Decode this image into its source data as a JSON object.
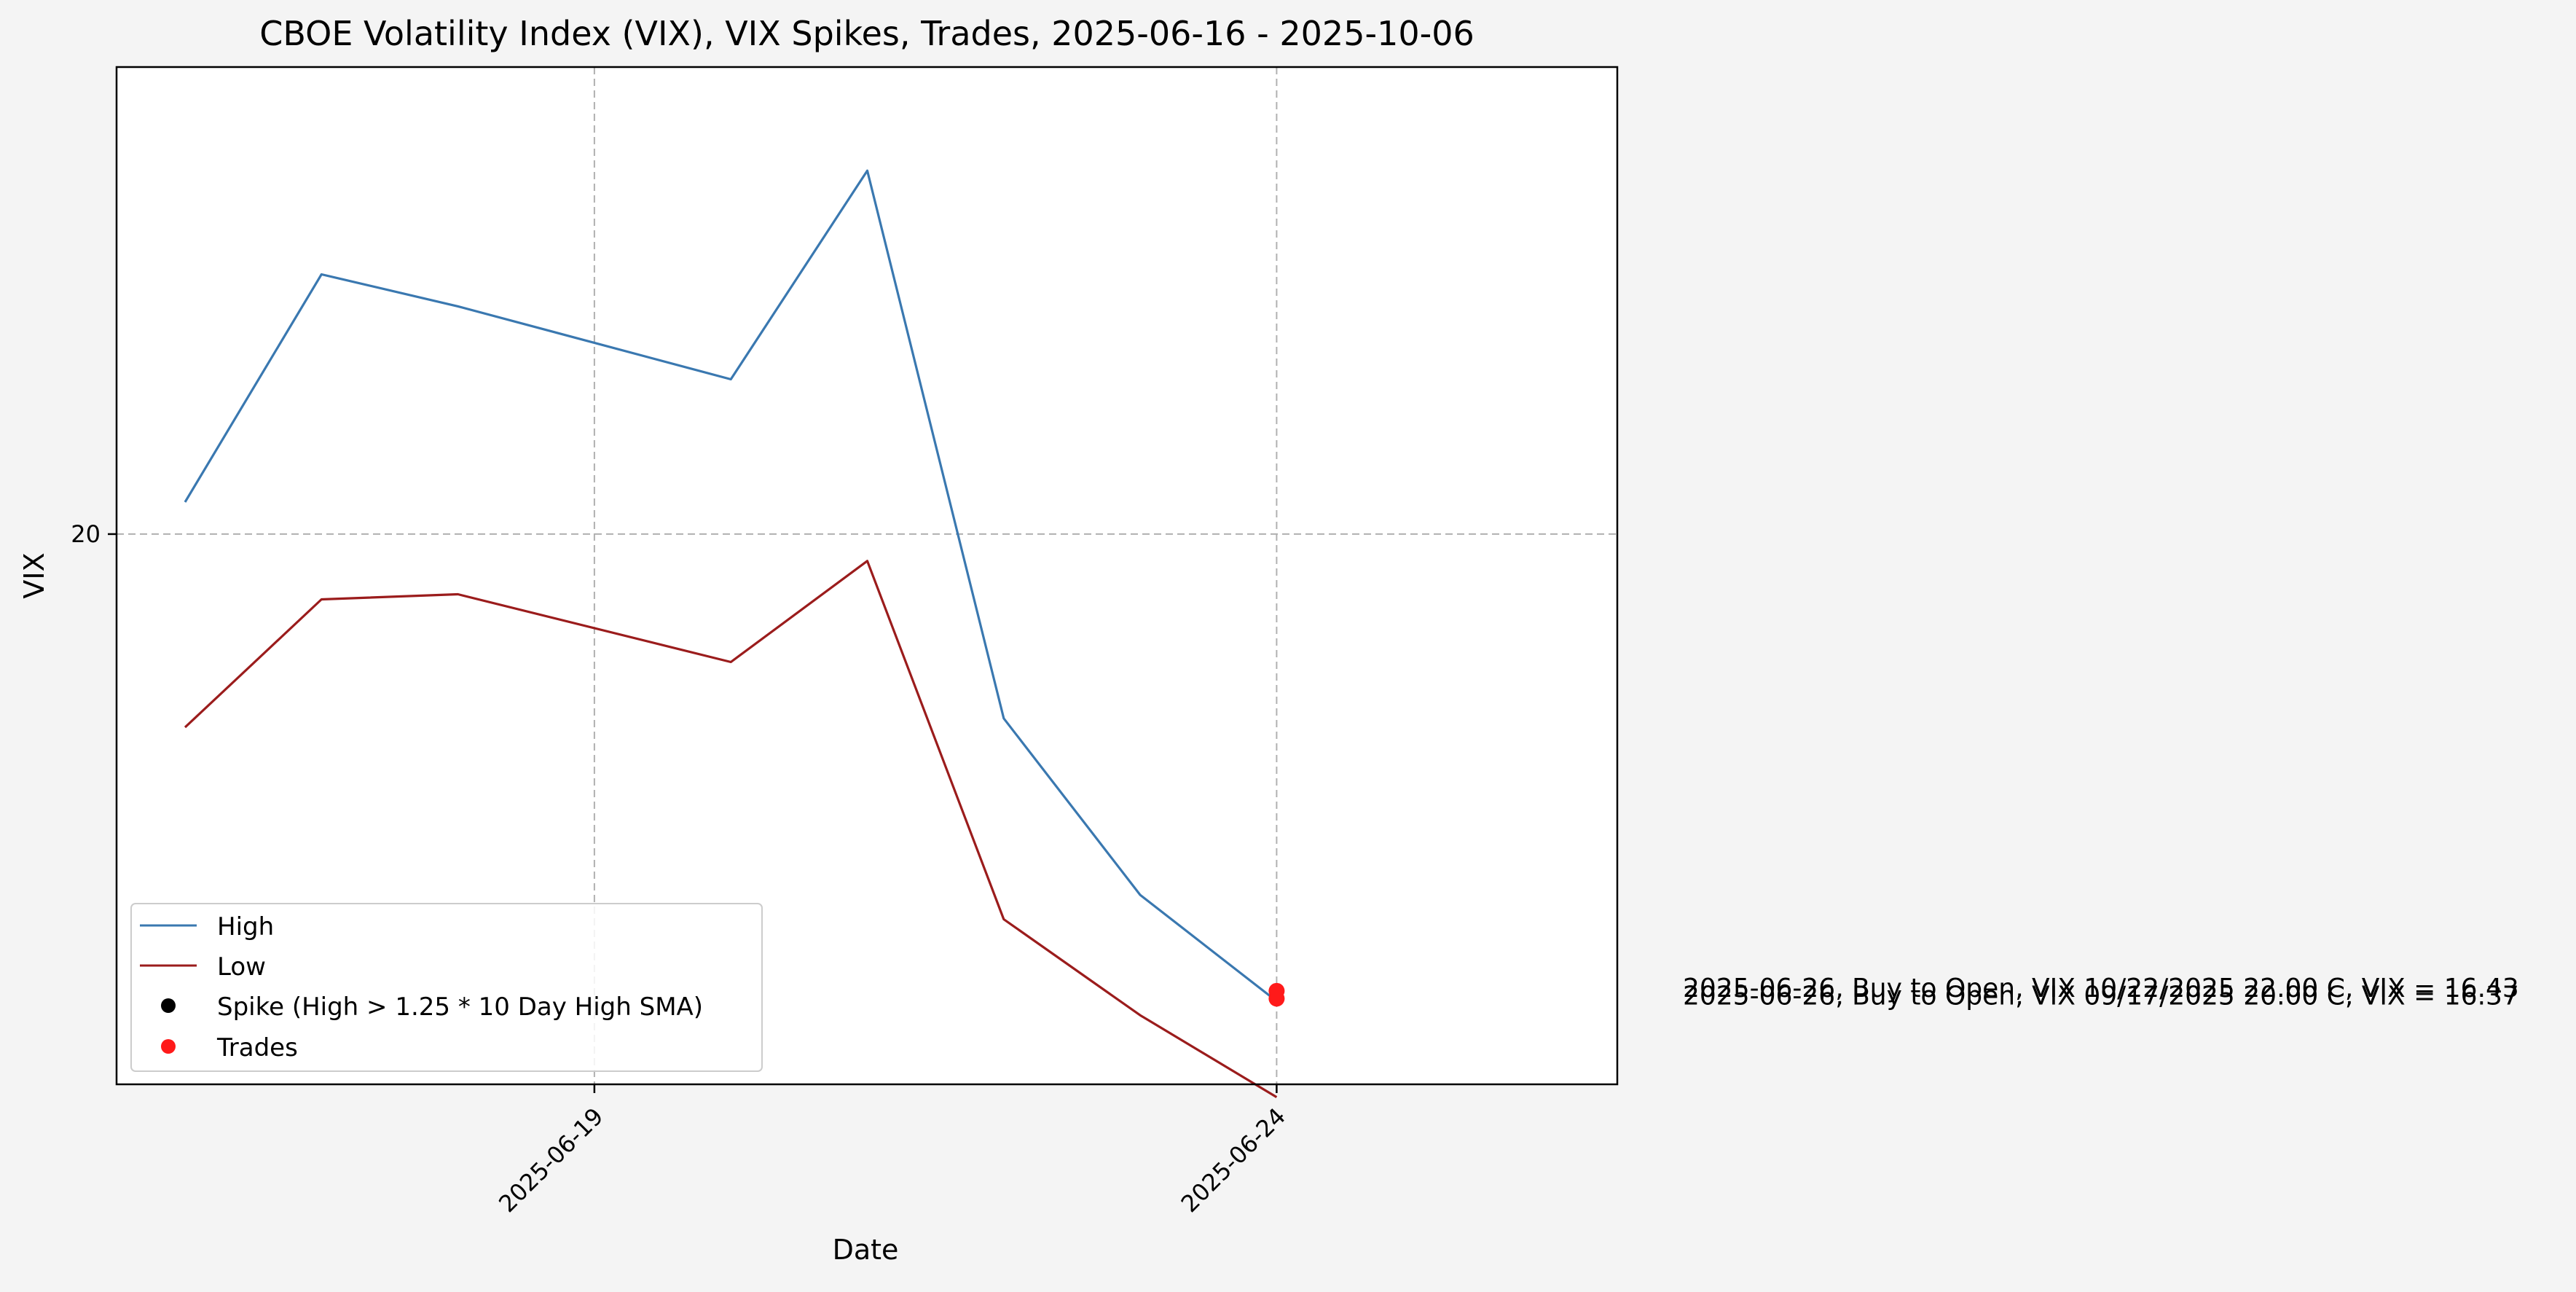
{
  "chart_data": {
    "type": "line",
    "title": "CBOE Volatility Index (VIX), VIX Spikes, Trades, 2025-06-16 - 2025-10-06",
    "xlabel": "Date",
    "ylabel": "VIX",
    "x_ticks": [
      "2025-06-19",
      "2025-06-24"
    ],
    "y_ticks": [
      20
    ],
    "grid": true,
    "legend_position": "lower-left",
    "x": [
      "2025-06-16",
      "2025-06-17",
      "2025-06-18",
      "2025-06-20",
      "2025-06-23",
      "2025-06-24",
      "2025-06-25",
      "2025-06-26"
    ],
    "ylim": [
      15.7,
      23.65
    ],
    "series": [
      {
        "name": "High",
        "color": "#3a78b0",
        "values": [
          20.25,
          22.03,
          21.78,
          21.21,
          22.84,
          18.56,
          17.18,
          16.35
        ]
      },
      {
        "name": "Low",
        "color": "#9b1c1c",
        "values": [
          18.49,
          19.49,
          19.53,
          19.0,
          19.79,
          16.99,
          16.24,
          15.6
        ]
      },
      {
        "name": "Spike (High > 1.25 * 10 Day High SMA)",
        "color": "#000000",
        "marker": "dot",
        "points": []
      },
      {
        "name": "Trades",
        "color": "#ff1a1a",
        "marker": "dot",
        "points": [
          {
            "x": "2025-06-26",
            "y": 16.43,
            "label": "2025-06-26, Buy to Open, VIX 10/22/2025 22.00 C, VIX = 16.43"
          },
          {
            "x": "2025-06-26",
            "y": 16.37,
            "label": "2025-06-26, Buy to Open, VIX 09/17/2025 20.00 C, VIX = 16.37"
          }
        ]
      }
    ]
  }
}
